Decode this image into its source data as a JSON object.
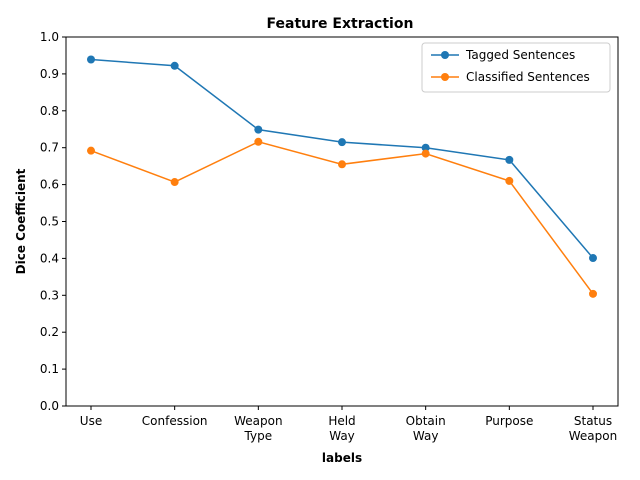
{
  "chart_data": {
    "type": "line",
    "title": "Feature Extraction",
    "xlabel": "labels",
    "ylabel": "Dice Coefficient",
    "ylim": [
      0,
      1
    ],
    "yticks": [
      "0.0",
      "0.1",
      "0.2",
      "0.3",
      "0.4",
      "0.5",
      "0.6",
      "0.7",
      "0.8",
      "0.9",
      "1.0"
    ],
    "categories": [
      [
        "Use"
      ],
      [
        "Confession"
      ],
      [
        "Weapon",
        "Type"
      ],
      [
        "Held",
        "Way"
      ],
      [
        "Obtain",
        "Way"
      ],
      [
        "Purpose"
      ],
      [
        "Status",
        "Weapon"
      ]
    ],
    "series": [
      {
        "name": "Tagged Sentences",
        "color": "#1f77b4",
        "marker": "circle",
        "values": [
          0.939,
          0.922,
          0.749,
          0.715,
          0.7,
          0.667,
          0.401
        ]
      },
      {
        "name": "Classified Sentences",
        "color": "#ff7f0e",
        "marker": "circle",
        "values": [
          0.692,
          0.607,
          0.716,
          0.655,
          0.684,
          0.61,
          0.304
        ]
      }
    ],
    "legend": "top-right",
    "grid": false
  }
}
